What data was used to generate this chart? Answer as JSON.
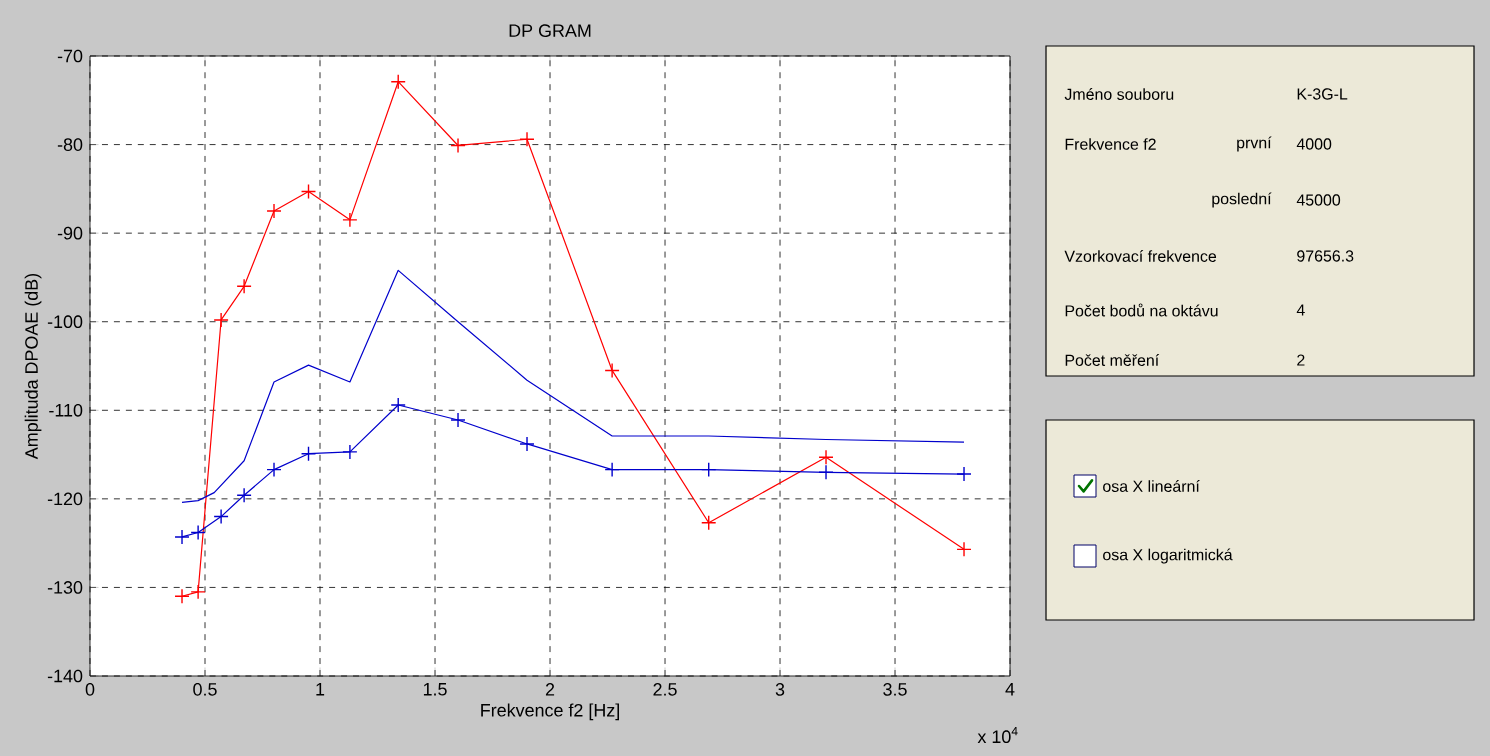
{
  "chart_data": [
    {
      "type": "line",
      "title": "DP GRAM",
      "xlabel": "Frekvence f2 [Hz]",
      "ylabel": "Amplituda DPOAE (dB)",
      "xlim": [
        0,
        4
      ],
      "ylim": [
        -140,
        -70
      ],
      "xticks": [
        0,
        0.5,
        1,
        1.5,
        2,
        2.5,
        3,
        3.5,
        4
      ],
      "yticks": [
        -140,
        -130,
        -120,
        -110,
        -100,
        -90,
        -80,
        -70
      ],
      "grid": true,
      "annotations": [
        "x 10$^{4}$"
      ],
      "series": [
        {
          "color": "#ff0000",
          "marker": "cross",
          "x": [
            0.4,
            0.47,
            0.57,
            0.67,
            0.8,
            0.95,
            1.13,
            1.34,
            1.6,
            1.9,
            2.27,
            2.69,
            3.2,
            3.8
          ],
          "values": [
            -131,
            -130.5,
            -99.8,
            -96,
            -87.5,
            -85.3,
            -88.5,
            -72.9,
            -80.1,
            -79.4,
            -105.5,
            -122.7,
            -115.3,
            -125.7
          ]
        },
        {
          "color": "#0000cc",
          "marker": "none",
          "x": [
            0.4,
            0.47,
            0.54,
            0.67,
            0.8,
            0.95,
            1.13,
            1.34,
            1.6,
            1.9,
            2.27,
            2.69,
            3.2,
            3.8
          ],
          "values": [
            -120.4,
            -120.2,
            -119.3,
            -115.7,
            -106.8,
            -104.9,
            -106.8,
            -94.2,
            -100,
            -106.6,
            -112.9,
            -112.9,
            -113.3,
            -113.6
          ]
        },
        {
          "color": "#0000cc",
          "marker": "cross",
          "x": [
            0.4,
            0.47,
            0.57,
            0.67,
            0.8,
            0.95,
            1.13,
            1.34,
            1.6,
            1.9,
            2.27,
            2.69,
            3.2,
            3.8
          ],
          "values": [
            -124.3,
            -123.8,
            -122,
            -119.6,
            -116.7,
            -114.9,
            -114.7,
            -109.4,
            -111.1,
            -113.8,
            -116.7,
            -116.7,
            -117,
            -117.2
          ]
        }
      ]
    },
    {
      "type": "other",
      "annotations": [
        "Jméno souboru",
        "K-3G-L",
        "Frekvence f2",
        "první",
        "4000",
        "poslední",
        "45000",
        "Vzorkovací frekvence",
        "97656.3",
        "Počet bodů na oktávu",
        "4",
        "Počet měření",
        "2",
        "osa X lineární",
        "osa X logaritmická"
      ]
    }
  ]
}
